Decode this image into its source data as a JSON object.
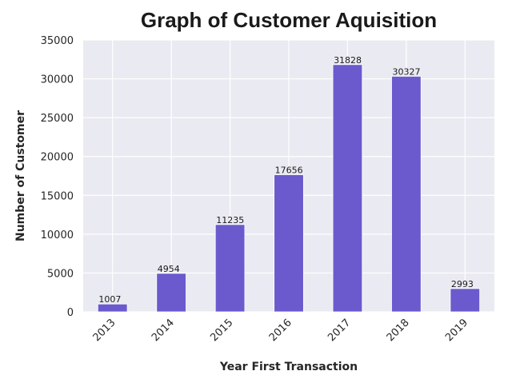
{
  "chart_data": {
    "type": "bar",
    "title": "Graph of Customer Aquisition",
    "xlabel": "Year First Transaction",
    "ylabel": "Number of Customer",
    "categories": [
      "2013",
      "2014",
      "2015",
      "2016",
      "2017",
      "2018",
      "2019"
    ],
    "values": [
      1007,
      4954,
      11235,
      17656,
      31828,
      30327,
      2993
    ],
    "data_labels": [
      "1007",
      "4954",
      "11235",
      "17656",
      "31828",
      "30327",
      "2993"
    ],
    "ylim": [
      0,
      35000
    ],
    "yticks": [
      0,
      5000,
      10000,
      15000,
      20000,
      25000,
      30000,
      35000
    ],
    "grid": true,
    "legend": "none",
    "colors": {
      "bar": "#6a5acd",
      "plot_background": "#eaeaf2",
      "grid": "#ffffff"
    }
  }
}
